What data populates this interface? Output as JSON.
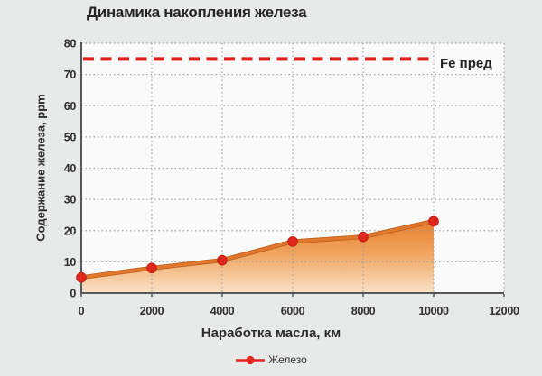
{
  "chart_data": {
    "type": "area",
    "title": "Динамика накопления железа",
    "xlabel": "Наработка масла, км",
    "ylabel": "Содержание железа, ppm",
    "x": [
      0,
      2000,
      4000,
      6000,
      8000,
      10000
    ],
    "series": [
      {
        "name": "Железо",
        "values": [
          5,
          8,
          10.5,
          16.5,
          18,
          23
        ]
      }
    ],
    "limit_line": {
      "label": "Fe пред",
      "value": 75
    },
    "xlim": [
      0,
      12000
    ],
    "ylim": [
      0,
      80
    ],
    "xticks": [
      0,
      2000,
      4000,
      6000,
      8000,
      10000,
      12000
    ],
    "yticks": [
      0,
      10,
      20,
      30,
      40,
      50,
      60,
      70,
      80
    ],
    "grid": true,
    "legend_position": "bottom",
    "colors": {
      "line": "#e0782e",
      "line_dark": "#c2601c",
      "area_top": "#e8802e",
      "area_mid": "#f0a45f",
      "area_bottom": "#f9e2c8",
      "marker": "#e0271b",
      "marker_edge": "#bf1d12",
      "limit": "#e01f1f",
      "grid": "#9b9b9b",
      "axis": "#57585a",
      "text": "#2b2b2b",
      "plot_bg": "#fafafa",
      "page_bg": "#e8e9e9"
    }
  }
}
